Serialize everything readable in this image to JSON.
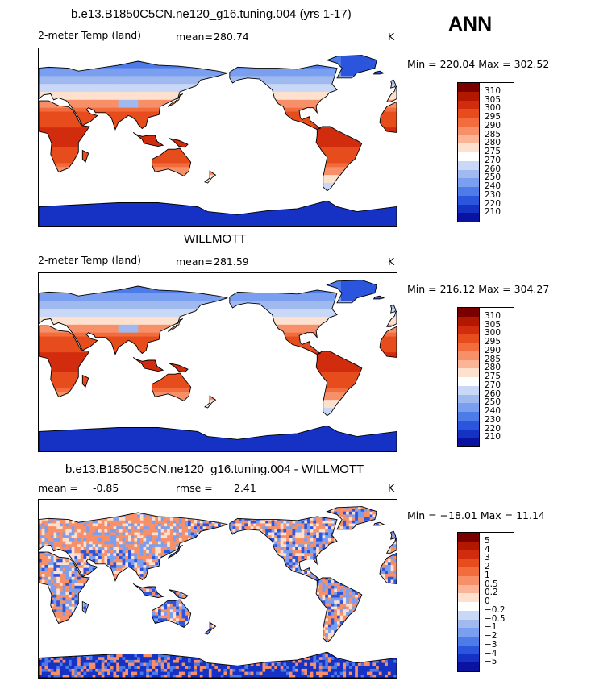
{
  "season": "ANN",
  "panels": [
    {
      "title": "b.e13.B1850C5CN.ne120_g16.tuning.004 (yrs 1-17)",
      "left_label": "2-meter Temp (land)",
      "stat_label": "mean=",
      "stat_value": "280.74",
      "rmse_label": "",
      "rmse_value": "",
      "units": "K",
      "minmax": "Min = 220.04 Max = 302.52",
      "colorbar": [
        "310",
        "305",
        "300",
        "295",
        "290",
        "285",
        "280",
        "275",
        "270",
        "260",
        "250",
        "240",
        "230",
        "220",
        "210"
      ],
      "colors": [
        "#7a0000",
        "#b21700",
        "#d22c0e",
        "#e64c1c",
        "#f26c3e",
        "#f79068",
        "#fbb596",
        "#fde0cd",
        "#ffffff",
        "#c9d8f6",
        "#a0baf0",
        "#7a9ef0",
        "#4d7be8",
        "#2a55dc",
        "#1632c4",
        "#0a12a0"
      ]
    },
    {
      "title": "WILLMOTT",
      "left_label": "2-meter Temp (land)",
      "stat_label": "mean=",
      "stat_value": "281.59",
      "rmse_label": "",
      "rmse_value": "",
      "units": "K",
      "minmax": "Min = 216.12 Max = 304.27",
      "colorbar": [
        "310",
        "305",
        "300",
        "295",
        "290",
        "285",
        "280",
        "275",
        "270",
        "260",
        "250",
        "240",
        "230",
        "220",
        "210"
      ],
      "colors": [
        "#7a0000",
        "#b21700",
        "#d22c0e",
        "#e64c1c",
        "#f26c3e",
        "#f79068",
        "#fbb596",
        "#fde0cd",
        "#ffffff",
        "#c9d8f6",
        "#a0baf0",
        "#7a9ef0",
        "#4d7be8",
        "#2a55dc",
        "#1632c4",
        "#0a12a0"
      ]
    },
    {
      "title": "b.e13.B1850C5CN.ne120_g16.tuning.004 - WILLMOTT",
      "left_label": "mean =",
      "stat_label": "",
      "stat_value": "-0.85",
      "rmse_label": "rmse =",
      "rmse_value": "2.41",
      "units": "K",
      "minmax": "Min = −18.01 Max =  11.14",
      "colorbar": [
        "5",
        "4",
        "3",
        "2",
        "1",
        "0.5",
        "0.2",
        "0",
        "−0.2",
        "−0.5",
        "−1",
        "−2",
        "−3",
        "−4",
        "−5"
      ],
      "colors": [
        "#7a0000",
        "#b21700",
        "#d22c0e",
        "#e64c1c",
        "#f26c3e",
        "#f79068",
        "#fbb596",
        "#fde0cd",
        "#ffffff",
        "#c9d8f6",
        "#a0baf0",
        "#7a9ef0",
        "#4d7be8",
        "#2a55dc",
        "#1632c4",
        "#0a12a0"
      ]
    }
  ],
  "chart_data": [
    {
      "type": "heatmap",
      "title": "b.e13.B1850C5CN.ne120_g16.tuning.004 (yrs 1-17)",
      "variable": "2-meter Temp (land)",
      "units": "K",
      "mean": 280.74,
      "min": 220.04,
      "max": 302.52,
      "levels": [
        210,
        220,
        230,
        240,
        250,
        260,
        270,
        275,
        280,
        285,
        290,
        295,
        300,
        305,
        310
      ]
    },
    {
      "type": "heatmap",
      "title": "WILLMOTT",
      "variable": "2-meter Temp (land)",
      "units": "K",
      "mean": 281.59,
      "min": 216.12,
      "max": 304.27,
      "levels": [
        210,
        220,
        230,
        240,
        250,
        260,
        270,
        275,
        280,
        285,
        290,
        295,
        300,
        305,
        310
      ]
    },
    {
      "type": "heatmap",
      "title": "b.e13.B1850C5CN.ne120_g16.tuning.004 - WILLMOTT",
      "units": "K",
      "mean": -0.85,
      "rmse": 2.41,
      "min": -18.01,
      "max": 11.14,
      "levels": [
        -5,
        -4,
        -3,
        -2,
        -1,
        -0.5,
        -0.2,
        0,
        0.2,
        0.5,
        1,
        2,
        3,
        4,
        5
      ]
    }
  ]
}
